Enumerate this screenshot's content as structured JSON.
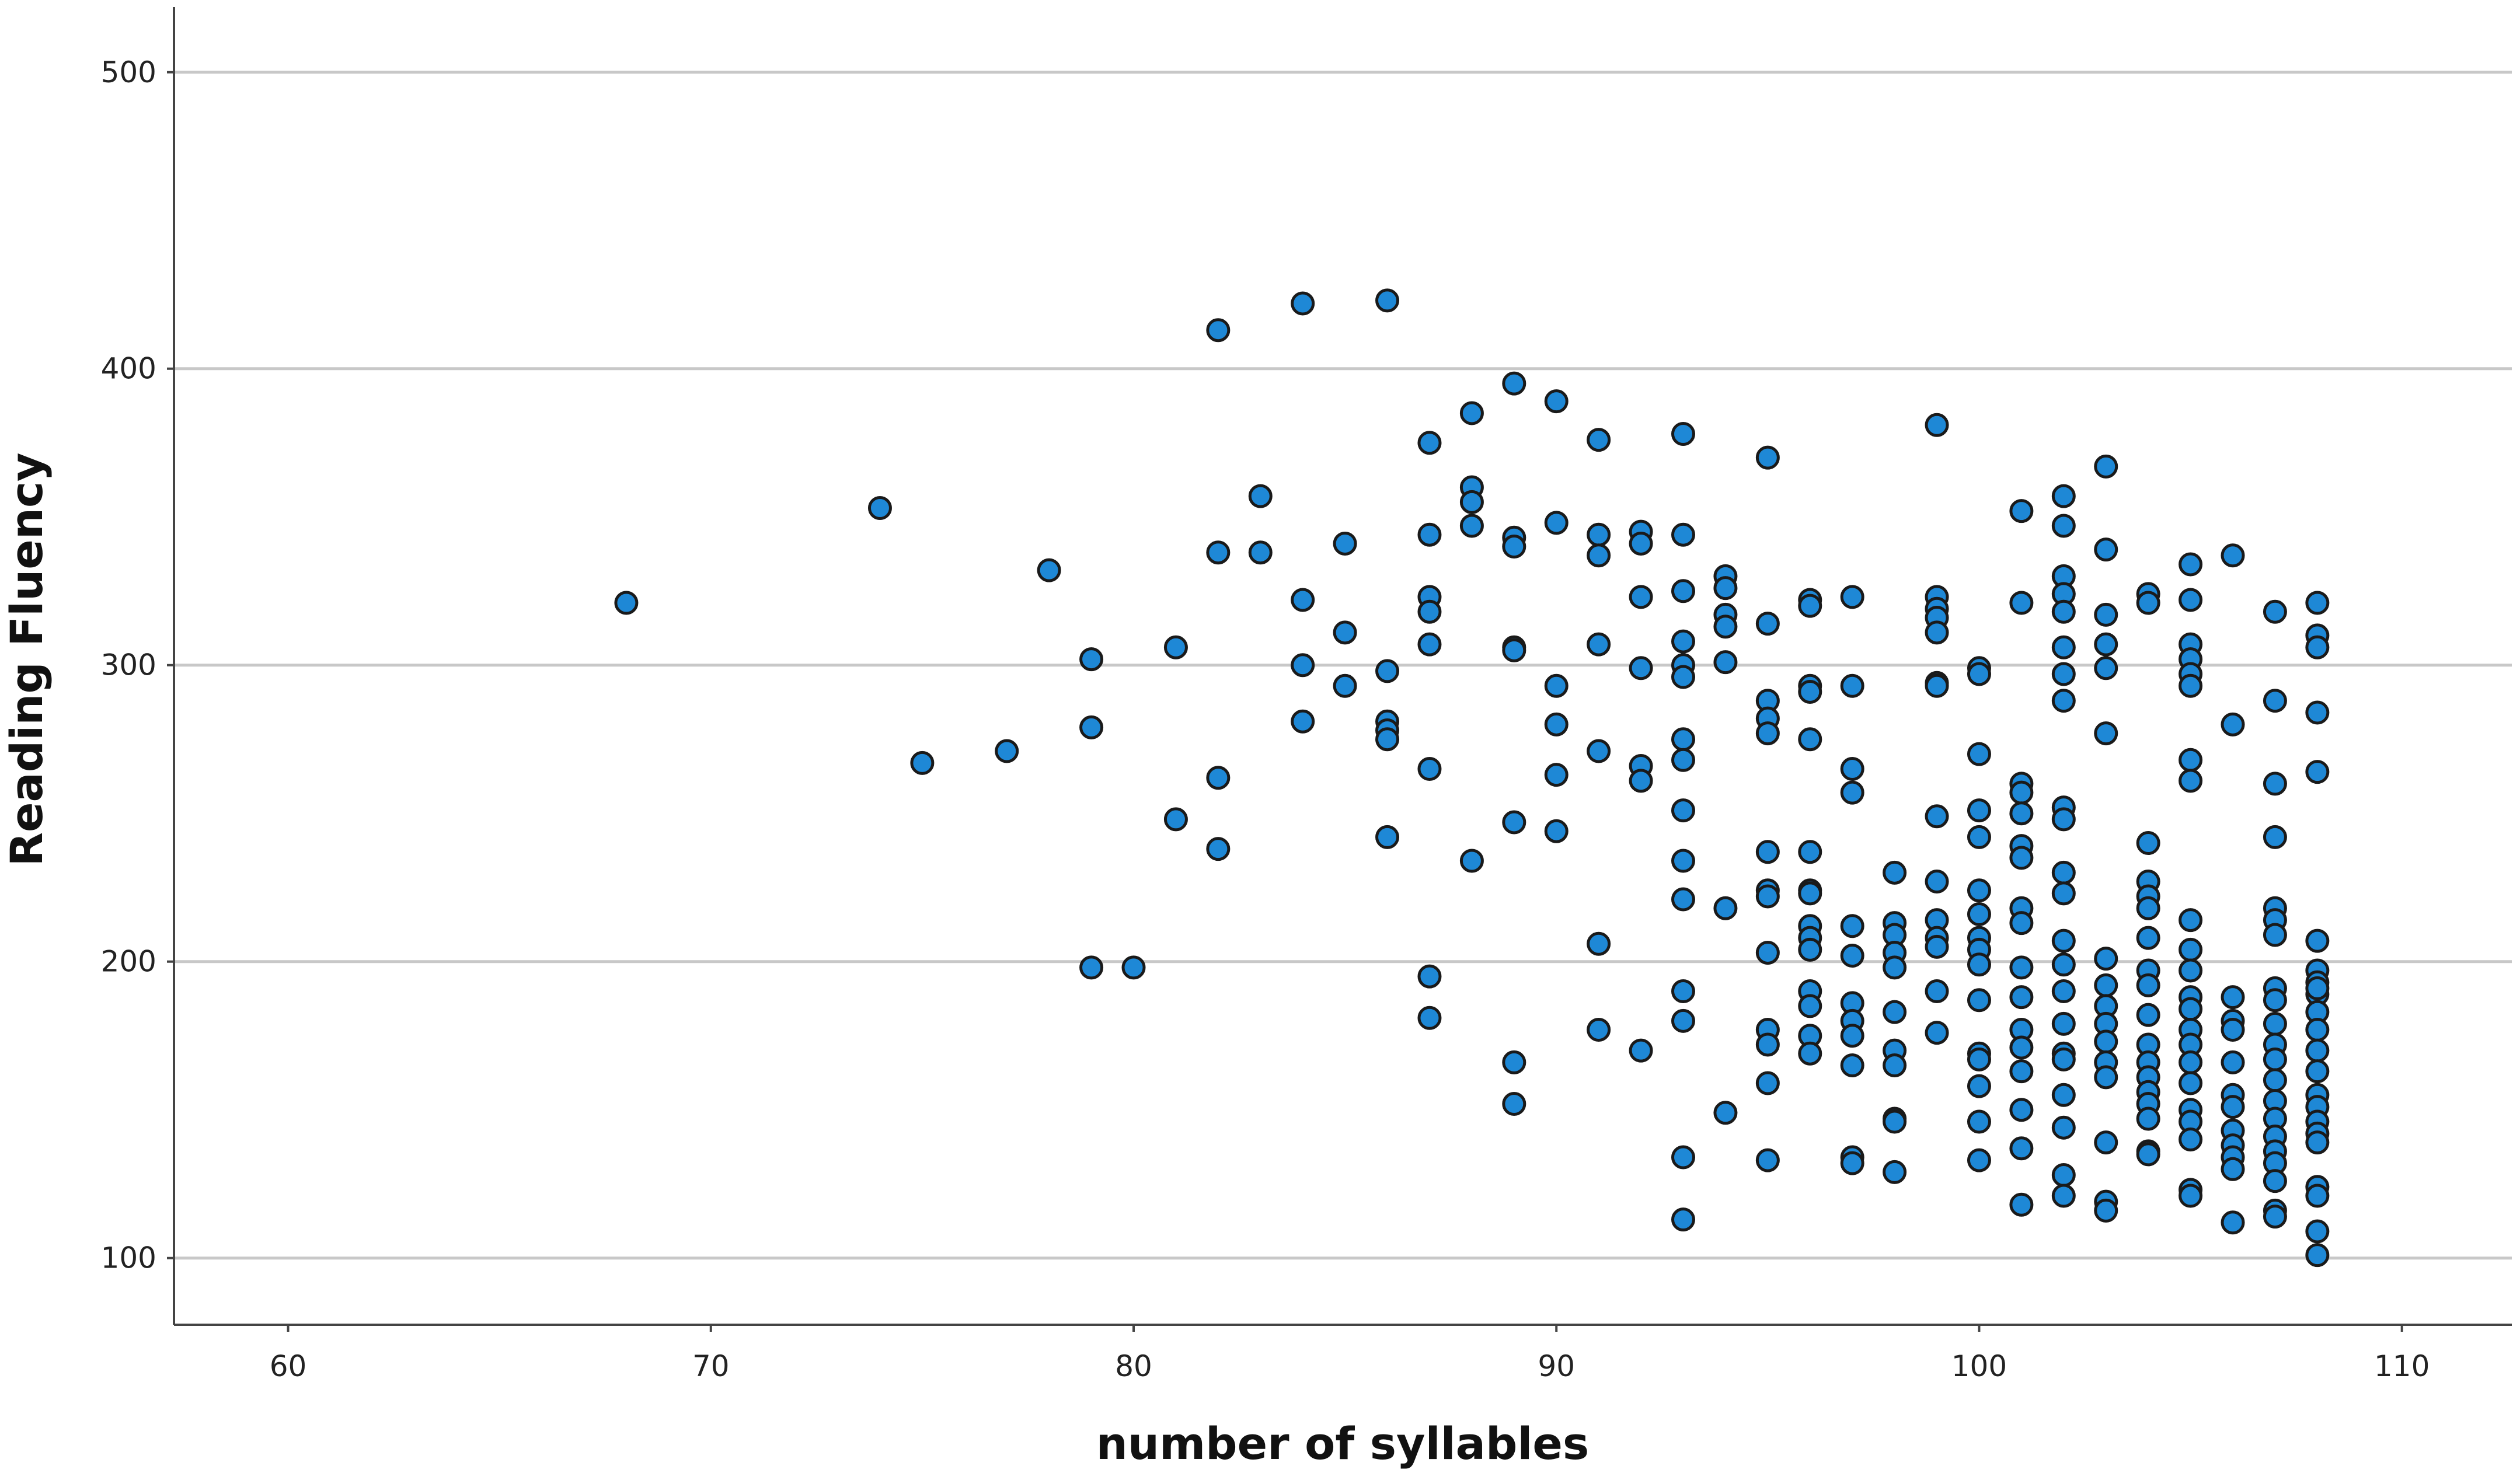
{
  "chart_data": {
    "type": "scatter",
    "title": "",
    "xlabel": "number of syllables",
    "ylabel": "Reading Fluency",
    "xlim": [
      57.3,
      112.6
    ],
    "ylim": [
      77.5,
      522
    ],
    "xticks": [
      60,
      70,
      80,
      90,
      100,
      110
    ],
    "yticks": [
      100,
      200,
      300,
      400,
      500
    ],
    "grid": "horizontal",
    "marker_fill": "#1e88d6",
    "marker_edge": "#1a1a1a",
    "x": [
      68,
      74,
      75,
      77,
      78,
      79,
      79,
      79,
      80,
      81,
      81,
      82,
      82,
      82,
      82,
      83,
      83,
      84,
      84,
      84,
      84,
      85,
      85,
      85,
      86,
      86,
      86,
      86,
      86,
      86,
      87,
      87,
      87,
      87,
      87,
      87,
      87,
      87,
      88,
      88,
      88,
      88,
      88,
      89,
      89,
      89,
      89,
      89,
      89,
      89,
      89,
      90,
      90,
      90,
      90,
      90,
      90,
      91,
      91,
      91,
      91,
      91,
      91,
      91,
      92,
      92,
      92,
      92,
      92,
      92,
      92,
      93,
      93,
      93,
      93,
      93,
      93,
      93,
      93,
      93,
      93,
      93,
      93,
      93,
      93,
      93,
      94,
      94,
      94,
      94,
      94,
      94,
      94,
      95,
      95,
      95,
      95,
      95,
      95,
      95,
      95,
      95,
      95,
      95,
      95,
      95,
      96,
      96,
      96,
      96,
      96,
      96,
      96,
      96,
      96,
      96,
      96,
      96,
      96,
      96,
      96,
      97,
      97,
      97,
      97,
      97,
      97,
      97,
      97,
      97,
      97,
      97,
      97,
      98,
      98,
      98,
      98,
      98,
      98,
      98,
      98,
      98,
      98,
      98,
      99,
      99,
      99,
      99,
      99,
      99,
      99,
      99,
      99,
      99,
      99,
      99,
      99,
      99,
      100,
      100,
      100,
      100,
      100,
      100,
      100,
      100,
      100,
      100,
      100,
      100,
      100,
      100,
      100,
      100,
      101,
      101,
      101,
      101,
      101,
      101,
      101,
      101,
      101,
      101,
      101,
      101,
      101,
      101,
      101,
      101,
      101,
      102,
      102,
      102,
      102,
      102,
      102,
      102,
      102,
      102,
      102,
      102,
      102,
      102,
      102,
      102,
      102,
      102,
      102,
      102,
      102,
      102,
      102,
      103,
      103,
      103,
      103,
      103,
      103,
      103,
      103,
      103,
      103,
      103,
      103,
      103,
      103,
      103,
      103,
      104,
      104,
      104,
      104,
      104,
      104,
      104,
      104,
      104,
      104,
      104,
      104,
      104,
      104,
      104,
      104,
      104,
      104,
      105,
      105,
      105,
      105,
      105,
      105,
      105,
      105,
      105,
      105,
      105,
      105,
      105,
      105,
      105,
      105,
      105,
      105,
      105,
      105,
      105,
      105,
      106,
      106,
      106,
      106,
      106,
      106,
      106,
      106,
      106,
      106,
      106,
      106,
      106,
      107,
      107,
      107,
      107,
      107,
      107,
      107,
      107,
      107,
      107,
      107,
      107,
      107,
      107,
      107,
      107,
      107,
      107,
      107,
      107,
      107,
      108,
      108,
      108,
      108,
      108,
      108,
      108,
      108,
      108,
      108,
      108,
      108,
      108,
      108,
      108,
      108,
      108,
      108,
      108,
      108,
      108,
      108,
      108
    ],
    "y": [
      321,
      353,
      267,
      271,
      332,
      302,
      279,
      198,
      198,
      306,
      248,
      413,
      338,
      262,
      238,
      357,
      338,
      422,
      322,
      300,
      281,
      341,
      311,
      293,
      423,
      298,
      281,
      278,
      275,
      242,
      375,
      344,
      323,
      318,
      307,
      265,
      195,
      181,
      385,
      360,
      355,
      347,
      234,
      395,
      343,
      340,
      306,
      305,
      247,
      166,
      152,
      389,
      348,
      293,
      280,
      263,
      244,
      376,
      344,
      337,
      307,
      271,
      206,
      177,
      345,
      341,
      323,
      299,
      266,
      261,
      170,
      378,
      344,
      325,
      308,
      300,
      296,
      275,
      268,
      251,
      234,
      221,
      190,
      180,
      134,
      113,
      330,
      326,
      317,
      313,
      301,
      218,
      149,
      370,
      314,
      288,
      282,
      277,
      237,
      224,
      222,
      203,
      177,
      172,
      159,
      133,
      322,
      320,
      293,
      291,
      275,
      237,
      224,
      223,
      212,
      208,
      204,
      190,
      185,
      175,
      169,
      323,
      293,
      265,
      257,
      212,
      202,
      186,
      180,
      175,
      165,
      134,
      132,
      230,
      213,
      209,
      203,
      198,
      183,
      170,
      165,
      147,
      146,
      129,
      381,
      323,
      319,
      316,
      311,
      294,
      293,
      249,
      227,
      214,
      208,
      205,
      190,
      176,
      299,
      297,
      270,
      251,
      242,
      224,
      216,
      208,
      204,
      199,
      187,
      169,
      167,
      158,
      146,
      133,
      352,
      321,
      260,
      257,
      250,
      239,
      235,
      218,
      213,
      198,
      188,
      177,
      171,
      163,
      150,
      137,
      118,
      357,
      347,
      330,
      324,
      318,
      306,
      297,
      288,
      252,
      248,
      230,
      223,
      207,
      199,
      190,
      179,
      169,
      167,
      155,
      144,
      128,
      121,
      367,
      339,
      317,
      307,
      299,
      277,
      201,
      192,
      185,
      179,
      173,
      166,
      161,
      139,
      119,
      116,
      324,
      321,
      240,
      227,
      222,
      218,
      208,
      197,
      192,
      182,
      172,
      166,
      161,
      156,
      152,
      147,
      136,
      135,
      334,
      322,
      307,
      302,
      297,
      293,
      268,
      261,
      214,
      204,
      197,
      188,
      184,
      177,
      172,
      166,
      159,
      150,
      146,
      140,
      123,
      121,
      337,
      280,
      188,
      180,
      177,
      166,
      155,
      151,
      143,
      138,
      134,
      130,
      112,
      318,
      288,
      260,
      242,
      218,
      214,
      209,
      191,
      187,
      179,
      172,
      167,
      160,
      153,
      147,
      141,
      136,
      132,
      126,
      116,
      114,
      321,
      310,
      306,
      284,
      264,
      207,
      197,
      193,
      189,
      183,
      177,
      170,
      163,
      155,
      151,
      146,
      142,
      139,
      124,
      121,
      109,
      101,
      191
    ]
  }
}
